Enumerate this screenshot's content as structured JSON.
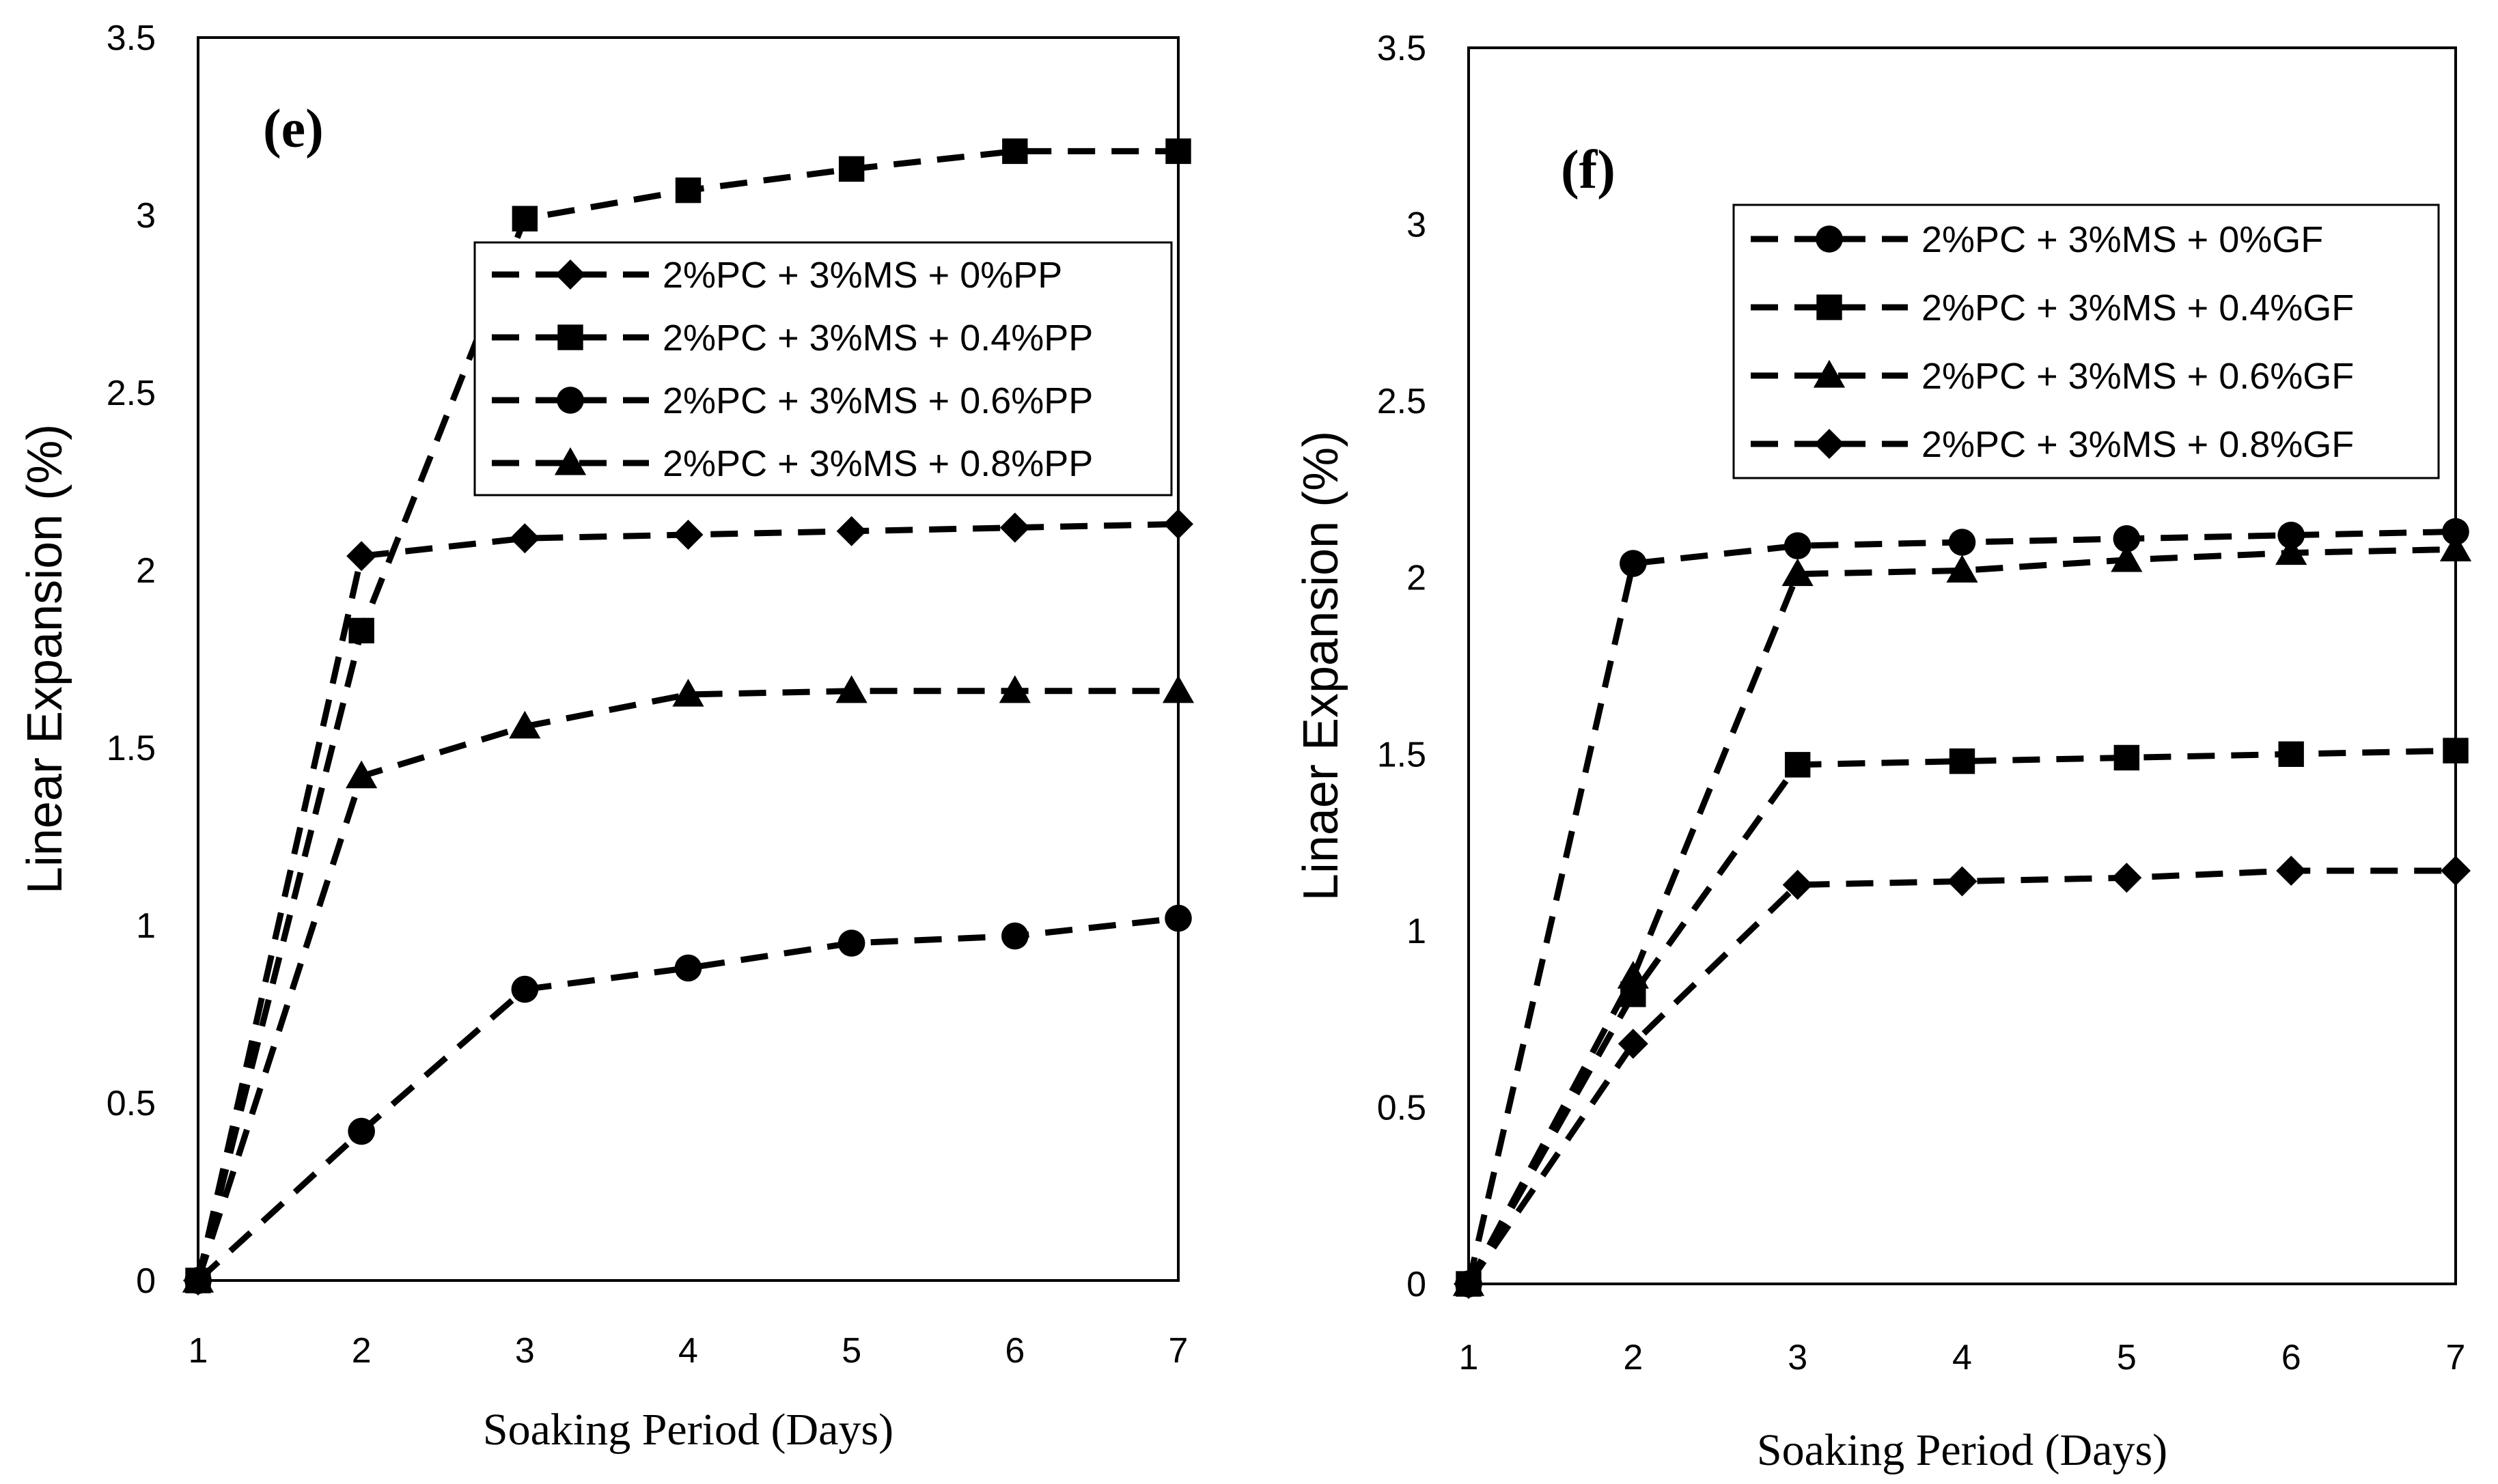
{
  "chart_data": [
    {
      "type": "line",
      "panel_label": "(e)",
      "xlabel": "Soaking Period (Days)",
      "ylabel": "Linear Expansion (%)",
      "xlim": [
        1,
        7
      ],
      "ylim": [
        0,
        3.5
      ],
      "x_ticks": [
        "1",
        "2",
        "3",
        "4",
        "5",
        "6",
        "7"
      ],
      "y_ticks": [
        "0",
        "0.5",
        "1",
        "1.5",
        "2",
        "2.5",
        "3",
        "3.5"
      ],
      "legend_position": "upper-right",
      "x": [
        1,
        2,
        3,
        4,
        5,
        6,
        7
      ],
      "series": [
        {
          "name": "2%PC + 3%MS + 0%PP",
          "marker": "diamond",
          "values": [
            0,
            2.04,
            2.09,
            2.1,
            2.11,
            2.12,
            2.13
          ]
        },
        {
          "name": "2%PC + 3%MS + 0.4%PP",
          "marker": "square",
          "values": [
            0,
            1.83,
            2.99,
            3.07,
            3.13,
            3.18,
            3.18
          ]
        },
        {
          "name": "2%PC + 3%MS + 0.6%PP",
          "marker": "circle",
          "values": [
            0,
            0.42,
            0.82,
            0.88,
            0.95,
            0.97,
            1.02
          ]
        },
        {
          "name": "2%PC + 3%MS + 0.8%PP",
          "marker": "triangle",
          "values": [
            0,
            1.42,
            1.56,
            1.65,
            1.66,
            1.66,
            1.66
          ]
        }
      ]
    },
    {
      "type": "line",
      "panel_label": "(f)",
      "xlabel": "Soaking Period (Days)",
      "ylabel": "Linaer Expansion (%)",
      "xlim": [
        1,
        7
      ],
      "ylim": [
        0,
        3.5
      ],
      "x_ticks": [
        "1",
        "2",
        "3",
        "4",
        "5",
        "6",
        "7"
      ],
      "y_ticks": [
        "0",
        "0.5",
        "1",
        "1.5",
        "2",
        "2.5",
        "3",
        "3.5"
      ],
      "legend_position": "upper-right",
      "x": [
        1,
        2,
        3,
        4,
        5,
        6,
        7
      ],
      "series": [
        {
          "name": "2%PC + 3%MS + 0%GF",
          "marker": "circle",
          "values": [
            0,
            2.04,
            2.09,
            2.1,
            2.11,
            2.12,
            2.13
          ]
        },
        {
          "name": "2%PC + 3%MS + 0.4%GF",
          "marker": "square",
          "values": [
            0,
            0.82,
            1.47,
            1.48,
            1.49,
            1.5,
            1.51
          ]
        },
        {
          "name": "2%PC + 3%MS + 0.6%GF",
          "marker": "triangle",
          "values": [
            0,
            0.87,
            2.01,
            2.02,
            2.05,
            2.07,
            2.08
          ]
        },
        {
          "name": "2%PC + 3%MS + 0.8%GF",
          "marker": "diamond",
          "values": [
            0,
            0.68,
            1.13,
            1.14,
            1.15,
            1.17,
            1.17
          ]
        }
      ]
    }
  ]
}
